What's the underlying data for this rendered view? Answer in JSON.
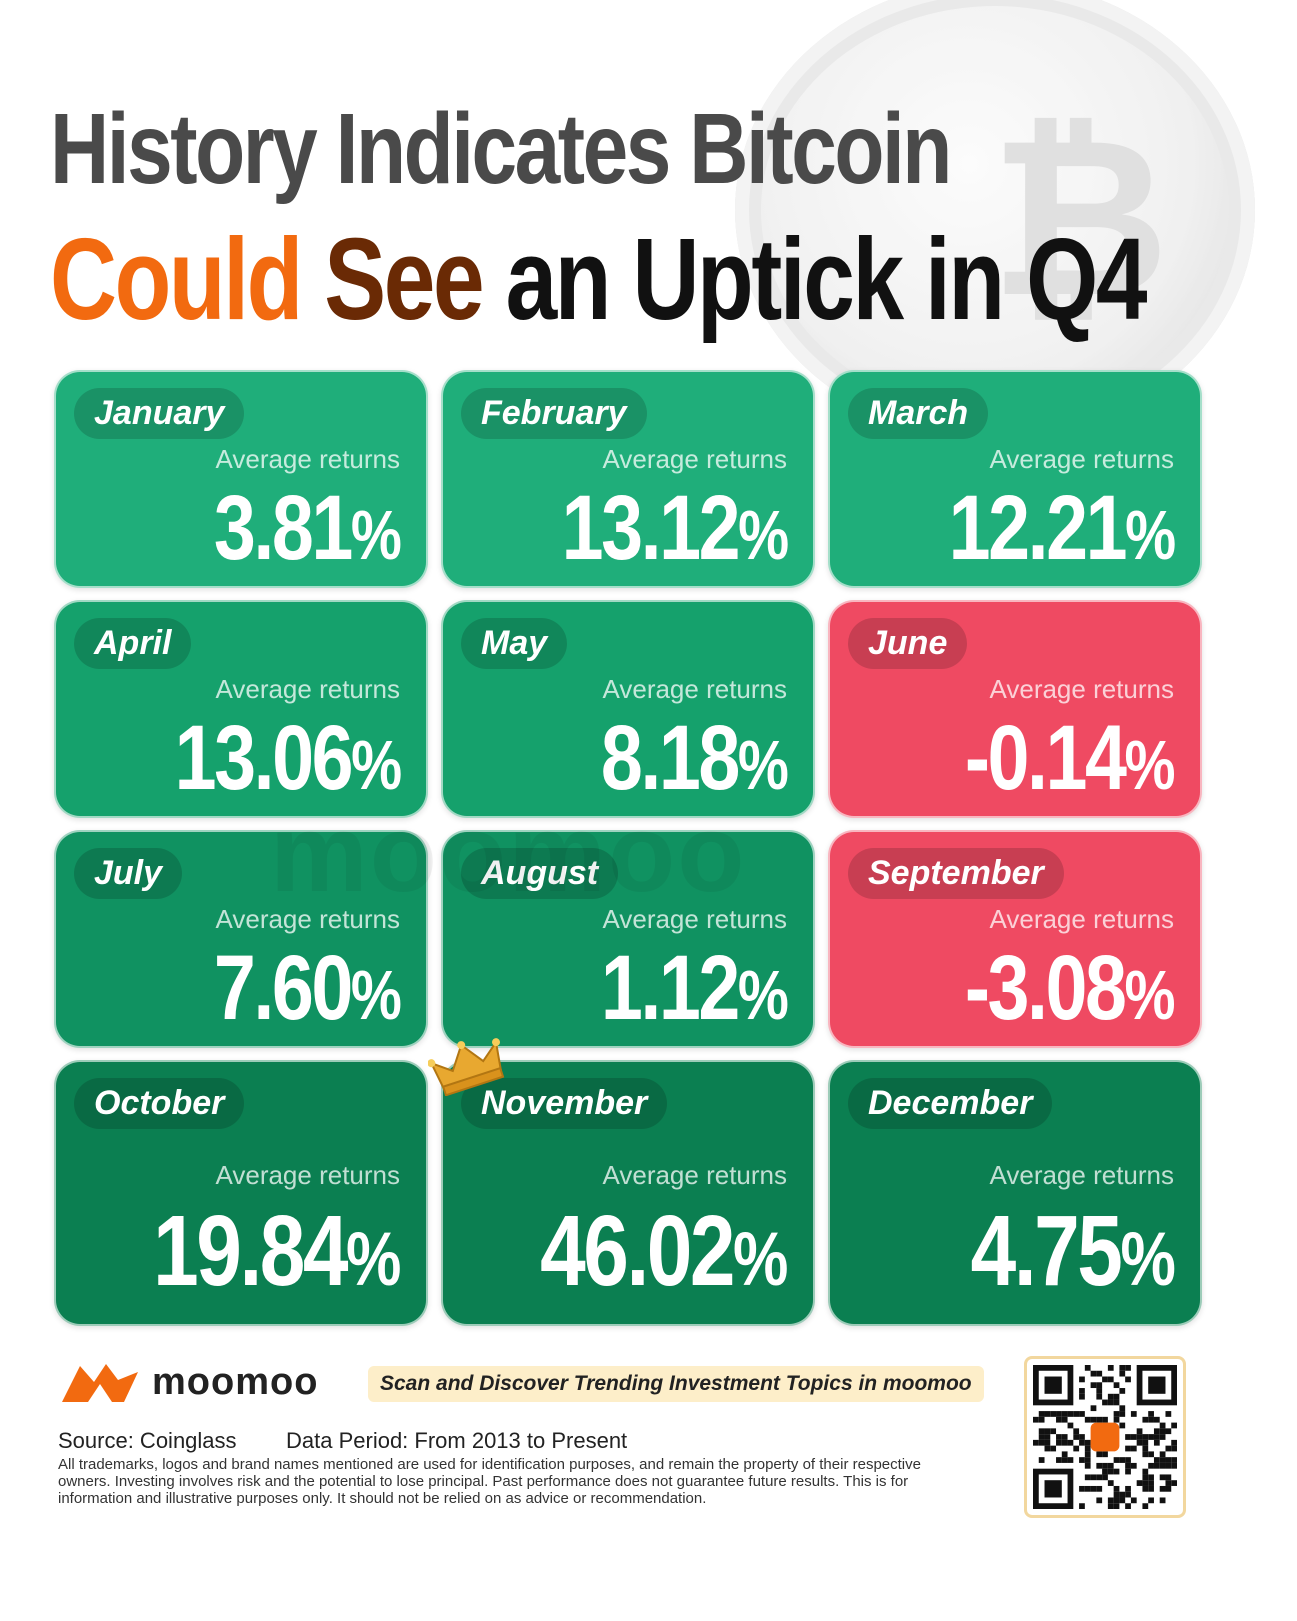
{
  "title": {
    "line1": "History Indicates Bitcoin",
    "line2_part1": "Could",
    "line2_part2": "See",
    "line2_part3": "an Uptick in Q4"
  },
  "watermark_text": "moomoo",
  "colors": {
    "green_light": "#1fae7a",
    "green_mid": "#139d69",
    "green_dark": "#0b7f51",
    "red": "#ef4a62",
    "orange": "#f26a10"
  },
  "months": [
    {
      "month": "January",
      "label": "Average returns",
      "value": "3.81",
      "unit": "%",
      "color": "#1fae7a"
    },
    {
      "month": "February",
      "label": "Average returns",
      "value": "13.12",
      "unit": "%",
      "color": "#1fae7a"
    },
    {
      "month": "March",
      "label": "Average returns",
      "value": "12.21",
      "unit": "%",
      "color": "#1fae7a"
    },
    {
      "month": "April",
      "label": "Average returns",
      "value": "13.06",
      "unit": "%",
      "color": "#15a16c"
    },
    {
      "month": "May",
      "label": "Average returns",
      "value": "8.18",
      "unit": "%",
      "color": "#15a16c"
    },
    {
      "month": "June",
      "label": "Average returns",
      "value": "-0.14",
      "unit": "%",
      "color": "#ef4a62"
    },
    {
      "month": "July",
      "label": "Average returns",
      "value": "7.60",
      "unit": "%",
      "color": "#109261"
    },
    {
      "month": "August",
      "label": "Average returns",
      "value": "1.12",
      "unit": "%",
      "color": "#109261"
    },
    {
      "month": "September",
      "label": "Average returns",
      "value": "-3.08",
      "unit": "%",
      "color": "#ef4a62"
    },
    {
      "month": "October",
      "label": "Average returns",
      "value": "19.84",
      "unit": "%",
      "color": "#0b7f51"
    },
    {
      "month": "November",
      "label": "Average returns",
      "value": "46.02",
      "unit": "%",
      "color": "#0b7f51"
    },
    {
      "month": "December",
      "label": "Average returns",
      "value": "4.75",
      "unit": "%",
      "color": "#0b7f51"
    }
  ],
  "footer": {
    "brand": "moomoo",
    "tagline": "Scan and Discover Trending Investment Topics in moomoo",
    "source": "Source: Coinglass",
    "period": "Data Period: From 2013 to Present",
    "disclaimer": "All trademarks, logos and brand names mentioned are used for identification purposes, and remain the property of their respective owners. Investing involves risk and the potential to lose principal. Past performance does not guarantee future results. This is for information and illustrative purposes only. It should not be relied on as advice or recommendation."
  }
}
